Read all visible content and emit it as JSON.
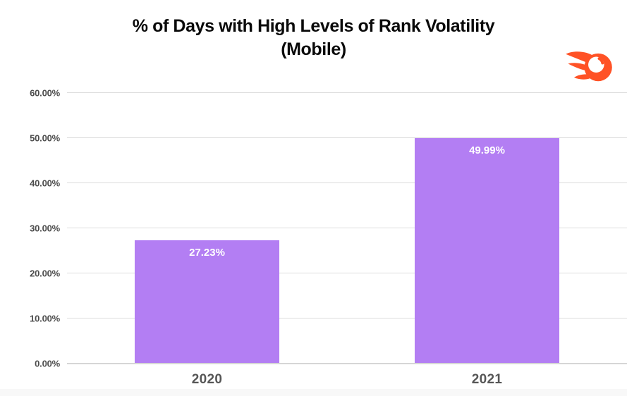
{
  "header": {
    "title_line1": "% of Days with High Levels of Rank Volatility",
    "title_line2": "(Mobile)",
    "logo": "semrush-comet-icon",
    "logo_color": "#FF5226"
  },
  "chart_data": {
    "type": "bar",
    "title": "% of Days with High Levels of Rank Volatility (Mobile)",
    "categories": [
      "2020",
      "2021"
    ],
    "values": [
      27.23,
      49.99
    ],
    "value_labels": [
      "27.23%",
      "49.99%"
    ],
    "xlabel": "",
    "ylabel": "",
    "ylim": [
      0,
      60
    ],
    "ytick_step": 10,
    "ytick_labels": [
      "0.00%",
      "10.00%",
      "20.00%",
      "30.00%",
      "40.00%",
      "50.00%",
      "60.00%"
    ],
    "grid": true,
    "legend": false,
    "bar_color": "#B37EF3",
    "value_label_color": "#ffffff",
    "gridline_color": "#dcdcdc",
    "axis_label_color": "#4d4d4d",
    "xtick_label_color": "#565656"
  }
}
